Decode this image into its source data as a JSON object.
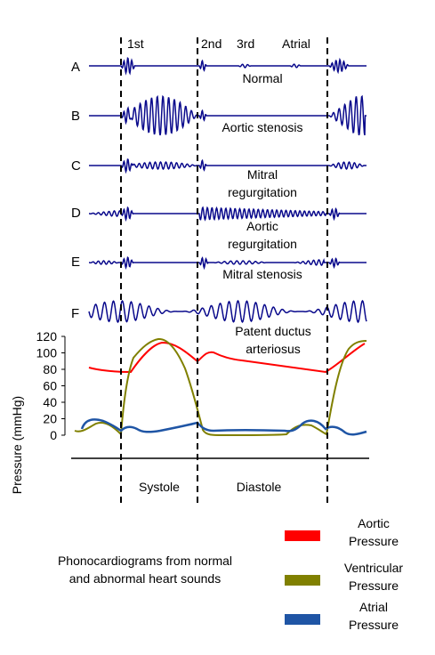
{
  "sound_markers": {
    "first": "1st",
    "second": "2nd",
    "third": "3rd",
    "atrial": "Atrial"
  },
  "rows": [
    {
      "letter": "A",
      "label": "Normal"
    },
    {
      "letter": "B",
      "label": "Aortic stenosis"
    },
    {
      "letter": "C",
      "label_line1": "Mitral",
      "label_line2": "regurgitation"
    },
    {
      "letter": "D",
      "label_line1": "Aortic",
      "label_line2": "regurgitation"
    },
    {
      "letter": "E",
      "label": "Mitral stenosis"
    },
    {
      "letter": "F",
      "label_line1": "Patent ductus",
      "label_line2": "arteriosus"
    }
  ],
  "pressure_axis": {
    "label": "Pressure (mmHg)",
    "ticks": [
      "120",
      "100",
      "80",
      "60",
      "40",
      "20",
      "0"
    ]
  },
  "phases": {
    "systole": "Systole",
    "diastole": "Diastole"
  },
  "caption_line1": "Phonocardiograms from normal",
  "caption_line2": "and abnormal heart sounds",
  "legend": [
    {
      "line1": "Aortic",
      "line2": "Pressure",
      "color": "#ff0000"
    },
    {
      "line1": "Ventricular",
      "line2": "Pressure",
      "color": "#808000"
    },
    {
      "line1": "Atrial",
      "line2": "Pressure",
      "color": "#1f55a5"
    }
  ],
  "colors": {
    "trace": "#0a0a8c",
    "aortic": "#ff0000",
    "ventricular": "#808000",
    "atrial": "#1f55a5"
  }
}
